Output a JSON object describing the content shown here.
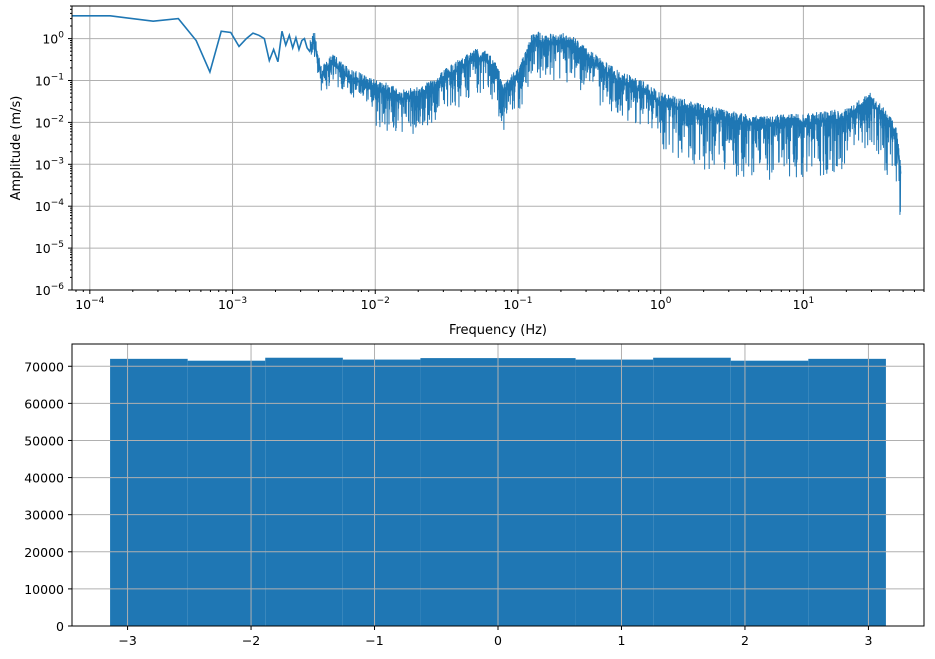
{
  "chart_data": [
    {
      "type": "line",
      "xlabel": "Frequency (Hz)",
      "ylabel": "Amplitude (m/s)",
      "xscale": "log",
      "yscale": "log",
      "xlim": [
        7.5e-05,
        70
      ],
      "ylim": [
        1e-06,
        6
      ],
      "grid": true,
      "color": "#1f77b4",
      "x_ticks": [
        {
          "value": 0.0001,
          "base": "10",
          "exp": "−4"
        },
        {
          "value": 0.001,
          "base": "10",
          "exp": "−3"
        },
        {
          "value": 0.01,
          "base": "10",
          "exp": "−2"
        },
        {
          "value": 0.1,
          "base": "10",
          "exp": "−1"
        },
        {
          "value": 1,
          "base": "10",
          "exp": "0"
        },
        {
          "value": 10,
          "base": "10",
          "exp": "1"
        }
      ],
      "y_ticks": [
        {
          "value": 1,
          "base": "10",
          "exp": "0"
        },
        {
          "value": 0.1,
          "base": "10",
          "exp": "−1"
        },
        {
          "value": 0.01,
          "base": "10",
          "exp": "−2"
        },
        {
          "value": 0.001,
          "base": "10",
          "exp": "−3"
        },
        {
          "value": 0.0001,
          "base": "10",
          "exp": "−4"
        },
        {
          "value": 1e-05,
          "base": "10",
          "exp": "−5"
        },
        {
          "value": 1e-06,
          "base": "10",
          "exp": "−6"
        }
      ],
      "series": [
        {
          "x": [
            7.5e-05,
            0.000139,
            0.000278,
            0.000417,
            0.000556,
            0.000694,
            0.000833,
            0.000972,
            0.00111,
            0.00125,
            0.00139,
            0.00153,
            0.00167,
            0.00181,
            0.00194,
            0.00208,
            0.00222,
            0.00236,
            0.0025,
            0.00264,
            0.00278,
            0.00292,
            0.00306,
            0.00319,
            0.00333,
            0.00347,
            0.00361,
            0.00375,
            0.00389,
            0.0042,
            0.005,
            0.006,
            0.007,
            0.008,
            0.01,
            0.012,
            0.015,
            0.02,
            0.025,
            0.03,
            0.04,
            0.05,
            0.06,
            0.07,
            0.08,
            0.1,
            0.12,
            0.13,
            0.15,
            0.2,
            0.25,
            0.3,
            0.5,
            0.8,
            1,
            2,
            3,
            5,
            7,
            10,
            15,
            20,
            25,
            30,
            35,
            40,
            45,
            48
          ],
          "y": [
            3.5,
            3.5,
            2.6,
            3.0,
            0.9,
            0.16,
            1.5,
            1.4,
            0.65,
            1.0,
            1.35,
            1.2,
            1.0,
            0.3,
            0.55,
            0.28,
            1.5,
            0.7,
            1.2,
            0.6,
            1.05,
            0.55,
            0.9,
            1.0,
            0.6,
            0.5,
            0.7,
            0.9,
            0.4,
            0.12,
            0.25,
            0.15,
            0.1,
            0.09,
            0.06,
            0.05,
            0.035,
            0.04,
            0.06,
            0.1,
            0.2,
            0.35,
            0.3,
            0.15,
            0.05,
            0.12,
            0.5,
            1.0,
            0.7,
            0.8,
            0.6,
            0.35,
            0.1,
            0.05,
            0.03,
            0.015,
            0.011,
            0.008,
            0.009,
            0.009,
            0.011,
            0.012,
            0.02,
            0.03,
            0.015,
            0.009,
            0.004,
            0.0006
          ]
        }
      ]
    },
    {
      "type": "bar",
      "xlim": [
        -3.45,
        3.45
      ],
      "ylim": [
        0,
        76000
      ],
      "grid": true,
      "color": "#1f77b4",
      "x_ticks": [
        {
          "value": -3,
          "label": "−3"
        },
        {
          "value": -2,
          "label": "−2"
        },
        {
          "value": -1,
          "label": "−1"
        },
        {
          "value": 0,
          "label": "0"
        },
        {
          "value": 1,
          "label": "1"
        },
        {
          "value": 2,
          "label": "2"
        },
        {
          "value": 3,
          "label": "3"
        }
      ],
      "y_ticks": [
        {
          "value": 0,
          "label": "0"
        },
        {
          "value": 10000,
          "label": "10000"
        },
        {
          "value": 20000,
          "label": "20000"
        },
        {
          "value": 30000,
          "label": "30000"
        },
        {
          "value": 40000,
          "label": "40000"
        },
        {
          "value": 50000,
          "label": "50000"
        },
        {
          "value": 60000,
          "label": "60000"
        },
        {
          "value": 70000,
          "label": "70000"
        }
      ],
      "bin_edges": [
        -3.1416,
        -2.5133,
        -1.885,
        -1.2566,
        -0.6283,
        0.0,
        0.6283,
        1.2566,
        1.885,
        2.5133,
        3.1416
      ],
      "values": [
        72000,
        71500,
        72300,
        71800,
        72200,
        72200,
        71800,
        72300,
        71500,
        72000
      ]
    }
  ]
}
